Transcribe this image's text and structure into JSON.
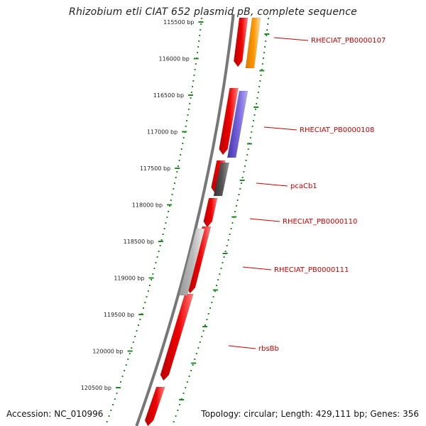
{
  "title": "Rhizobium etli CIAT 652 plasmid pB, complete sequence",
  "footer": {
    "accession": "Accession: NC_010996",
    "summary": "Topology: circular; Length: 429,111 bp; Genes: 356"
  },
  "position_ticks": [
    "115500 bp",
    "116000 bp",
    "116500 bp",
    "117000 bp",
    "117500 bp",
    "118000 bp",
    "118500 bp",
    "119000 bp",
    "119500 bp",
    "120000 bp",
    "120500 bp"
  ],
  "gene_labels": [
    "RHECIAT_PB0000107",
    "RHECIAT_PB0000108",
    "pcaCb1",
    "RHECIAT_PB0000110",
    "RHECIAT_PB0000111",
    "rbsBb"
  ],
  "colors": {
    "backbone": "#777777",
    "gene_red": "#ee0000",
    "gene_orange": "#ff9900",
    "gene_purple": "#7766dd",
    "gene_dark_gray": "#555555",
    "gene_light_gray": "#bbbbbb",
    "dotted_track": "#228822",
    "label_red": "#cc0000"
  }
}
